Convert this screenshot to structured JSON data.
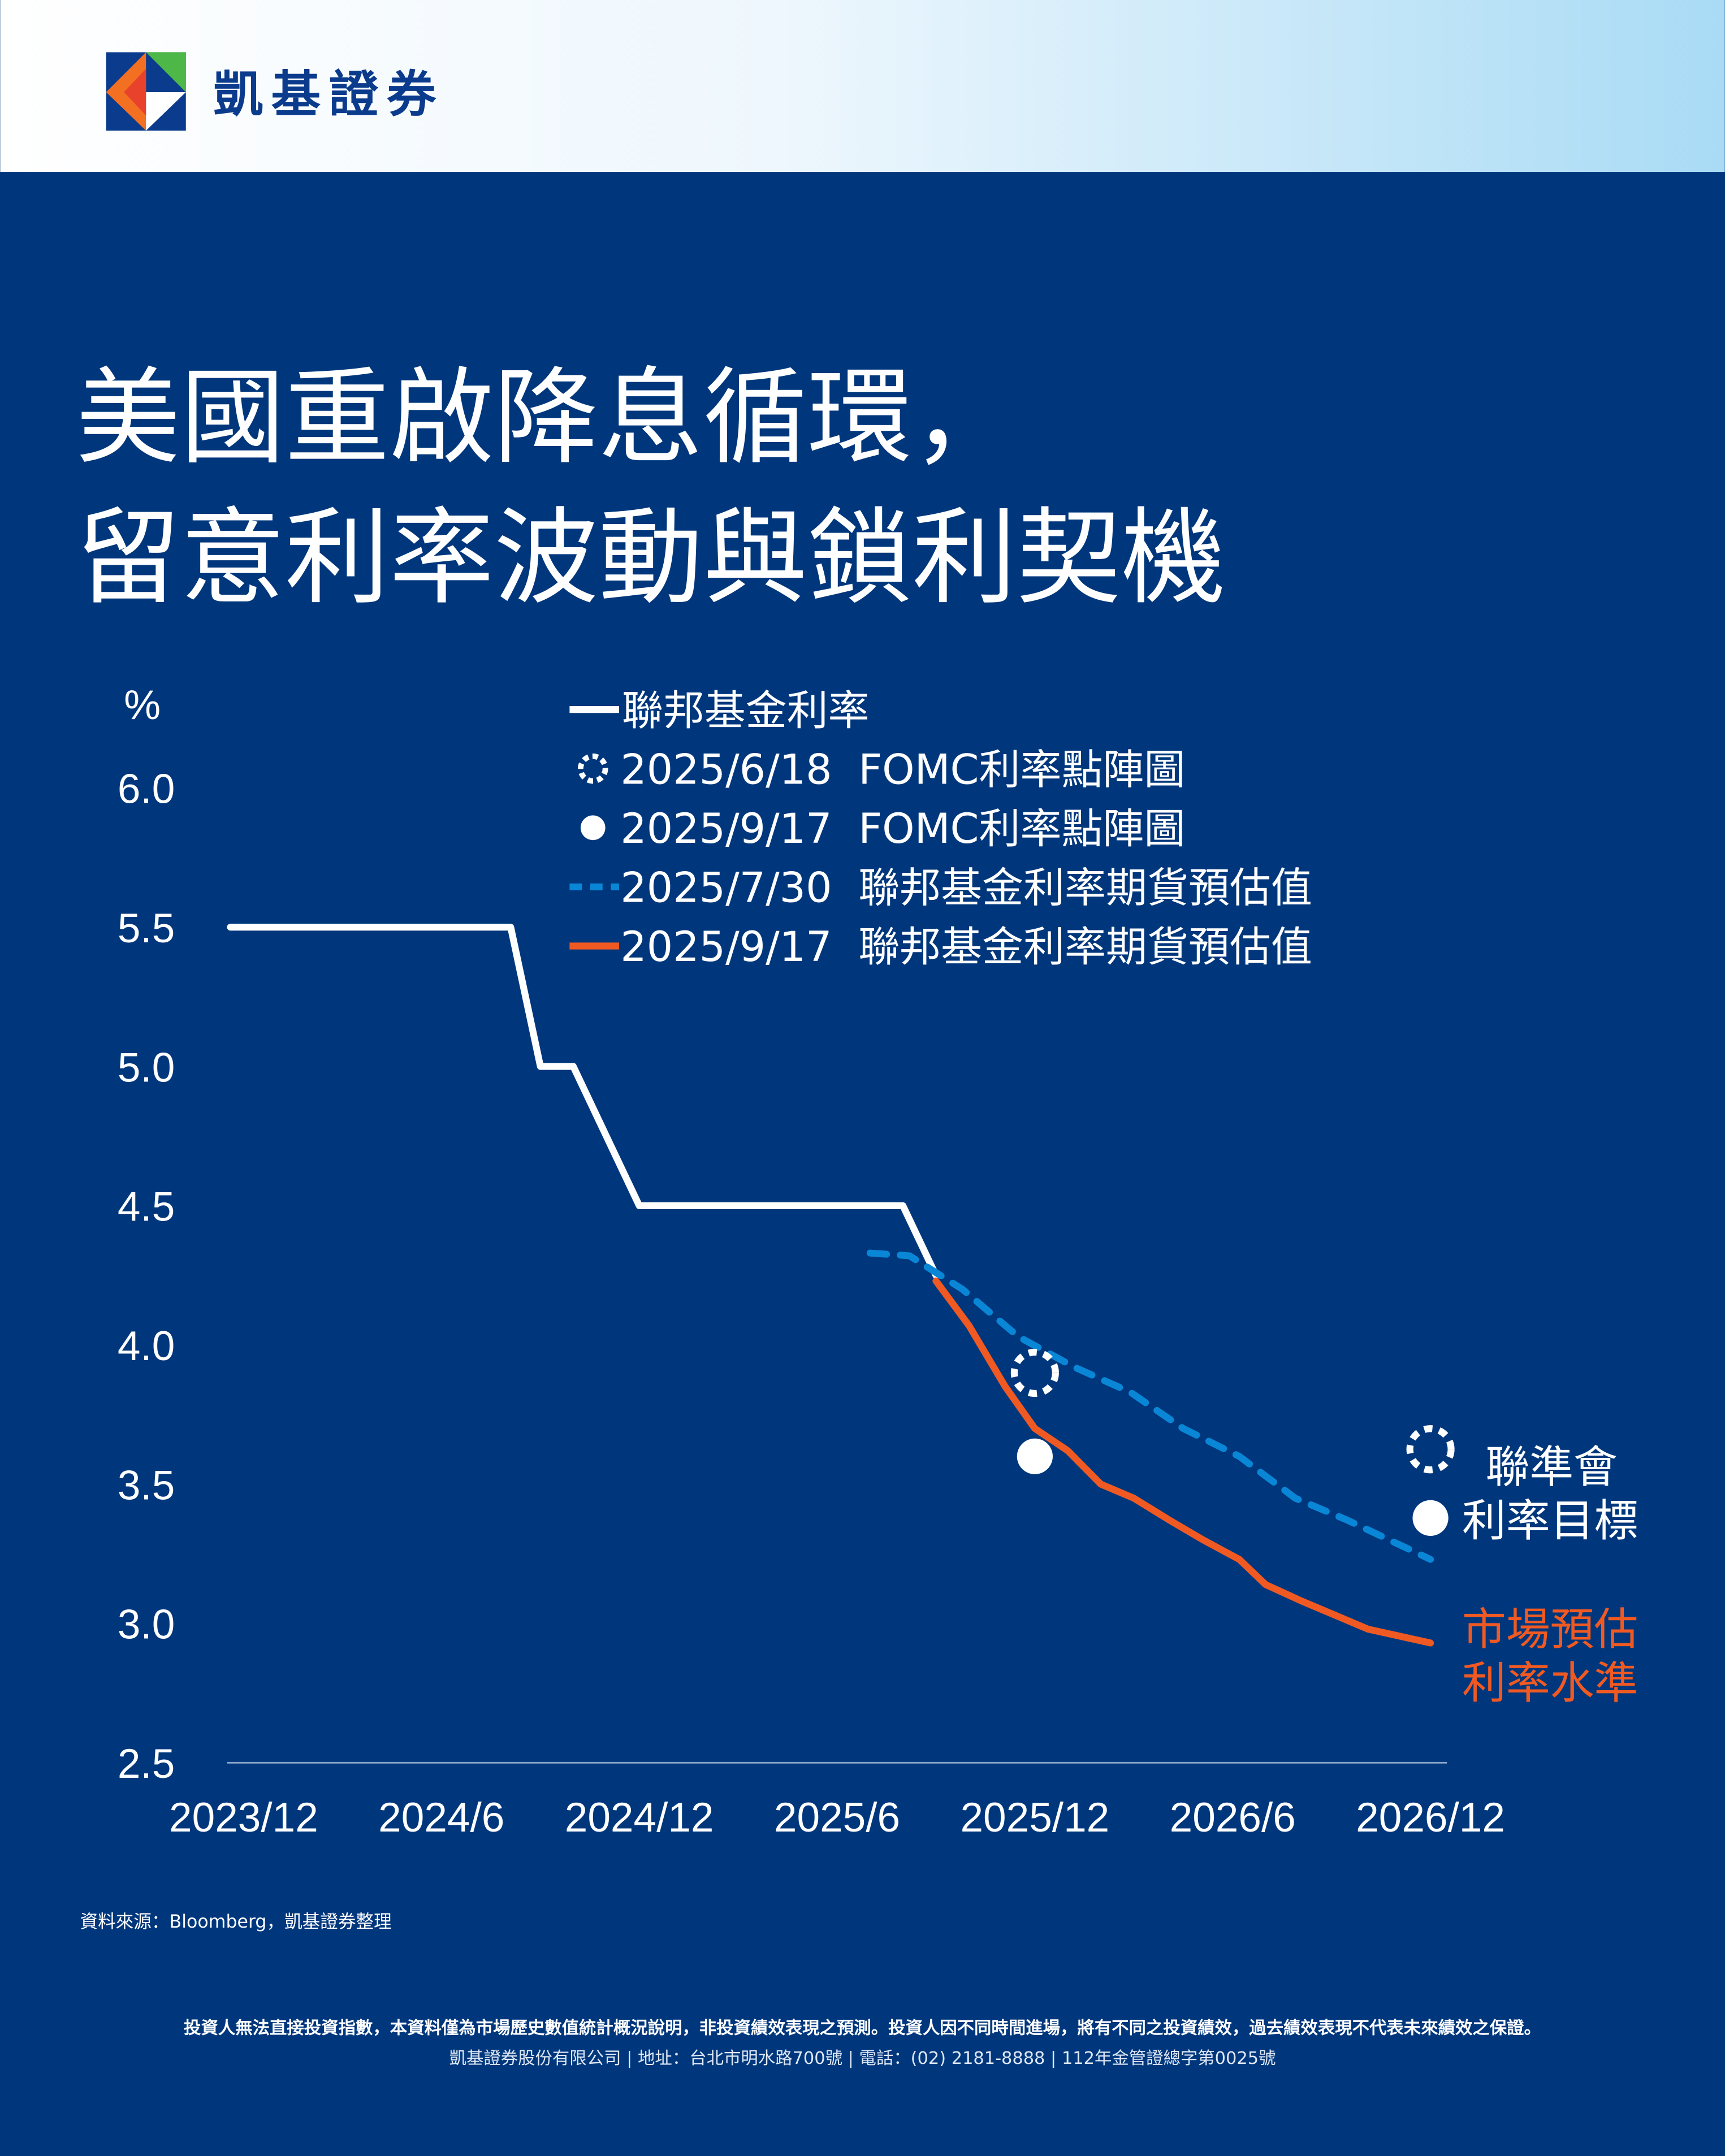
{
  "header": {
    "brand": "凱基證券"
  },
  "title": {
    "line1": "美國重啟降息循環，",
    "line2": "留意利率波動與鎖利契機"
  },
  "colors": {
    "background": "#00377c",
    "white": "#ffffff",
    "blue_dash": "#0a86d6",
    "orange": "#f05a22"
  },
  "chart_data": {
    "type": "line",
    "ylabel": "%",
    "ylim": [
      2.5,
      6.0
    ],
    "yticks": [
      "6.0",
      "5.5",
      "5.0",
      "4.5",
      "4.0",
      "3.5",
      "3.0",
      "2.5"
    ],
    "ytick_values": [
      6.0,
      5.5,
      5.0,
      4.5,
      4.0,
      3.5,
      3.0,
      2.5
    ],
    "x_unit": "months since 2023/12",
    "xlim": [
      0,
      36
    ],
    "xticks": [
      "2023/12",
      "2024/6",
      "2024/12",
      "2025/6",
      "2025/12",
      "2026/6",
      "2026/12"
    ],
    "xtick_values": [
      0,
      6,
      12,
      18,
      24,
      30,
      36
    ],
    "legend": {
      "placement": "top-center",
      "items": [
        {
          "marker": "line",
          "date": "",
          "label": "聯邦基金利率"
        },
        {
          "marker": "dashed-circle",
          "date": "2025/6/18",
          "label": "FOMC利率點陣圖"
        },
        {
          "marker": "dot",
          "date": "2025/9/17",
          "label": "FOMC利率點陣圖"
        },
        {
          "marker": "dashed-line",
          "date": "2025/7/30",
          "label": "聯邦基金利率期貨預估值"
        },
        {
          "marker": "orange-line",
          "date": "2025/9/17",
          "label": "聯邦基金利率期貨預估值"
        }
      ]
    },
    "series": [
      {
        "name": "聯邦基金利率",
        "color": "#ffffff",
        "style": "solid",
        "points": [
          [
            -0.4,
            5.5
          ],
          [
            8.1,
            5.5
          ],
          [
            9,
            5.0
          ],
          [
            10,
            5.0
          ],
          [
            12,
            4.5
          ],
          [
            20,
            4.5
          ],
          [
            21,
            4.25
          ]
        ]
      },
      {
        "name": "2025/7/30 聯邦基金利率期貨預估值",
        "color": "#0a86d6",
        "style": "dashed",
        "points": [
          [
            19,
            4.33
          ],
          [
            20.2,
            4.32
          ],
          [
            21,
            4.26
          ],
          [
            21.8,
            4.2
          ],
          [
            23.5,
            4.03
          ],
          [
            25.2,
            3.92
          ],
          [
            26.9,
            3.83
          ],
          [
            28.5,
            3.7
          ],
          [
            30.2,
            3.6
          ],
          [
            31.9,
            3.45
          ],
          [
            33.5,
            3.37
          ],
          [
            36,
            3.23
          ]
        ]
      },
      {
        "name": "2025/9/17 聯邦基金利率期貨預估值",
        "color": "#f05a22",
        "style": "solid",
        "points": [
          [
            21,
            4.23
          ],
          [
            22,
            4.07
          ],
          [
            23.1,
            3.85
          ],
          [
            24,
            3.7
          ],
          [
            25,
            3.62
          ],
          [
            26,
            3.5
          ],
          [
            27,
            3.45
          ],
          [
            28.1,
            3.37
          ],
          [
            29.1,
            3.3
          ],
          [
            30.2,
            3.23
          ],
          [
            31,
            3.14
          ],
          [
            32.1,
            3.08
          ],
          [
            33.1,
            3.03
          ],
          [
            34.1,
            2.98
          ],
          [
            36,
            2.93
          ]
        ]
      }
    ],
    "dots": [
      {
        "name": "2025/6/18 FOMC利率點陣圖",
        "x": 24,
        "y": 3.9,
        "style": "dashed-circle"
      },
      {
        "name": "2025/9/17 FOMC利率點陣圖",
        "x": 24,
        "y": 3.6,
        "style": "dot"
      }
    ],
    "annotations": {
      "fed_target_line1": "聯準會",
      "fed_target_line2": "利率目標",
      "market_line1": "市場預估",
      "market_line2": "利率水準"
    }
  },
  "footer": {
    "source": "資料來源：Bloomberg，凱基證券整理",
    "disclaimer": "投資人無法直接投資指數，本資料僅為市場歷史數值統計概況說明，非投資績效表現之預測。投資人因不同時間進場，將有不同之投資績效，過去績效表現不代表未來績效之保證。",
    "company": "凱基證券股份有限公司 | 地址：台北市明水路700號 | 電話：(02) 2181-8888 | 112年金管證總字第0025號"
  }
}
